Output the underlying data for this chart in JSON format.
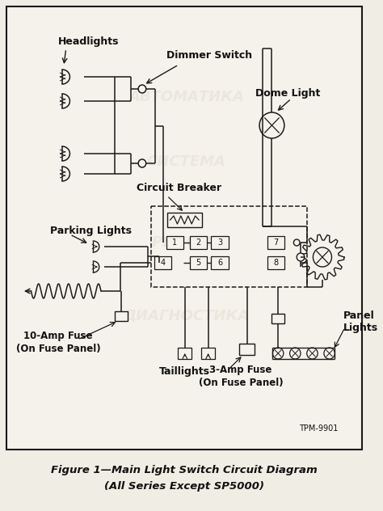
{
  "title": "Figure 1—Main Light Switch Circuit Diagram",
  "subtitle": "(All Series Except SP5000)",
  "page_bg": "#f0ede4",
  "diagram_bg": "#f5f2eb",
  "line_color": "#1a1a1a",
  "text_color": "#111111",
  "tpm": "TPM-9901",
  "figsize": [
    4.74,
    6.32
  ],
  "dpi": 100,
  "labels": {
    "headlights": "Headlights",
    "dimmer_switch": "Dimmer Switch",
    "dome_light": "Dome Light",
    "circuit_breaker": "Circuit Breaker",
    "parking_lights": "Parking Lights",
    "ten_amp_1": "10-Amp Fuse",
    "ten_amp_2": "(On Fuse Panel)",
    "taillights": "Taillights",
    "three_amp_1": "3-Amp Fuse",
    "three_amp_2": "(On Fuse Panel)",
    "panel_lights": "Panel\nLights"
  }
}
